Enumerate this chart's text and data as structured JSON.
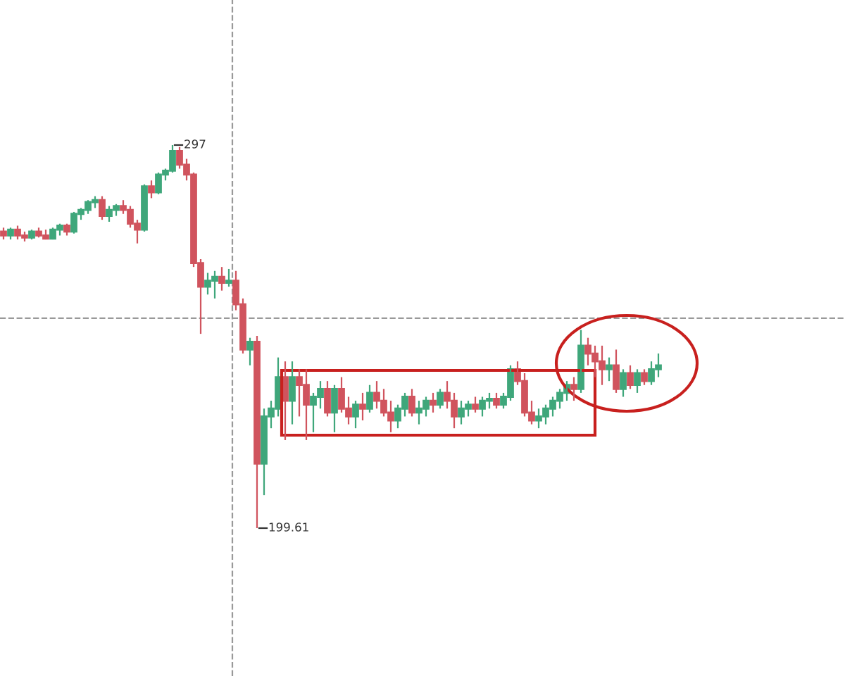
{
  "chart_data": {
    "type": "candlestick",
    "categories": [
      null,
      null,
      null,
      null,
      null,
      null,
      null,
      null,
      null,
      null,
      null,
      null,
      null,
      null,
      null,
      null,
      null,
      null,
      null,
      null,
      null,
      null,
      null,
      null,
      null,
      null,
      null,
      null,
      null,
      null,
      null,
      null,
      null,
      null,
      null,
      null,
      null,
      null,
      null,
      null,
      null,
      null,
      null,
      null,
      null,
      null,
      null,
      null,
      null,
      null,
      null,
      null,
      null,
      null,
      null,
      null,
      null,
      null,
      null,
      null,
      null,
      null,
      null,
      null,
      null,
      null,
      null,
      null,
      null,
      null,
      null,
      null,
      null,
      null,
      null,
      null,
      null,
      null,
      null,
      null,
      null,
      null,
      null,
      null,
      null,
      null,
      null,
      null,
      null,
      null,
      null,
      null,
      null,
      null
    ],
    "ohlc": [
      [
        275,
        276,
        273,
        274
      ],
      [
        274,
        276,
        273,
        275.5
      ],
      [
        275.5,
        276.5,
        273,
        274
      ],
      [
        274,
        275,
        272.5,
        273.5
      ],
      [
        273.5,
        275.5,
        273,
        275
      ],
      [
        275,
        276,
        273.5,
        274
      ],
      [
        274,
        275.5,
        273,
        273.2
      ],
      [
        273.2,
        276,
        273,
        275.5
      ],
      [
        275.5,
        277,
        274,
        276.5
      ],
      [
        276.5,
        277,
        274,
        275
      ],
      [
        275,
        280,
        274.5,
        279.5
      ],
      [
        279.5,
        281,
        278,
        280.5
      ],
      [
        280.5,
        283,
        279.5,
        282.5
      ],
      [
        282.5,
        284,
        281,
        283
      ],
      [
        283,
        284,
        278,
        279
      ],
      [
        279,
        281.5,
        277.5,
        280.5
      ],
      [
        280.5,
        282,
        279,
        281.5
      ],
      [
        281.5,
        283,
        279.5,
        280.5
      ],
      [
        280.5,
        281.5,
        276,
        277
      ],
      [
        277,
        278,
        272,
        275.5
      ],
      [
        275.5,
        287,
        275,
        286.5
      ],
      [
        286.5,
        288,
        283.5,
        285
      ],
      [
        285,
        290,
        284.5,
        289.5
      ],
      [
        289.5,
        291,
        288,
        290.5
      ],
      [
        290.5,
        297,
        290,
        295.5
      ],
      [
        295.5,
        296.5,
        291,
        292
      ],
      [
        292,
        293.5,
        288,
        289.5
      ],
      [
        289.5,
        290,
        266,
        267
      ],
      [
        267,
        268,
        249,
        261
      ],
      [
        261,
        264.5,
        259,
        262.5
      ],
      [
        262.5,
        265,
        258,
        263.5
      ],
      [
        263.5,
        266,
        260,
        262
      ],
      [
        262,
        265.5,
        261,
        262.5
      ],
      [
        262.5,
        265,
        255,
        256.5
      ],
      [
        256.5,
        258,
        244,
        245
      ],
      [
        245,
        248,
        241,
        247
      ],
      [
        247,
        248.5,
        199.61,
        216
      ],
      [
        216,
        230,
        208,
        228
      ],
      [
        228,
        232,
        225,
        230
      ],
      [
        230,
        243,
        228,
        238
      ],
      [
        238,
        242,
        222,
        232
      ],
      [
        232,
        242,
        226,
        238
      ],
      [
        238,
        240,
        228,
        236
      ],
      [
        236,
        240,
        222,
        231
      ],
      [
        231,
        234,
        224,
        233
      ],
      [
        233,
        237,
        230,
        235
      ],
      [
        235,
        237,
        228,
        229
      ],
      [
        229,
        236,
        224,
        235
      ],
      [
        235,
        238,
        229,
        230
      ],
      [
        230,
        233,
        226,
        228
      ],
      [
        228,
        232,
        225,
        231
      ],
      [
        231,
        234,
        227,
        230
      ],
      [
        230,
        236,
        229,
        234
      ],
      [
        234,
        237,
        230,
        232
      ],
      [
        232,
        235,
        228,
        229
      ],
      [
        229,
        232,
        224,
        227
      ],
      [
        227,
        231,
        225,
        230
      ],
      [
        230,
        234,
        228,
        233
      ],
      [
        233,
        235,
        228,
        229
      ],
      [
        229,
        232,
        226,
        230
      ],
      [
        230,
        233,
        228,
        232
      ],
      [
        232,
        234,
        229,
        231
      ],
      [
        231,
        235,
        230,
        234
      ],
      [
        234,
        237,
        230,
        232
      ],
      [
        232,
        234,
        225,
        228
      ],
      [
        228,
        232,
        226,
        230
      ],
      [
        230,
        232,
        228,
        231
      ],
      [
        231,
        233,
        229,
        230
      ],
      [
        230,
        233,
        228,
        232
      ],
      [
        232,
        234,
        230,
        232.5
      ],
      [
        232.5,
        234,
        230,
        231
      ],
      [
        231,
        234,
        230,
        233
      ],
      [
        233,
        241,
        232,
        240
      ],
      [
        240,
        242,
        236,
        237
      ],
      [
        237,
        239,
        228,
        229
      ],
      [
        229,
        232,
        226,
        227
      ],
      [
        227,
        230,
        225,
        228
      ],
      [
        228,
        231,
        226,
        230
      ],
      [
        230,
        233,
        228,
        232
      ],
      [
        232,
        235,
        230,
        234
      ],
      [
        234,
        237,
        232,
        236
      ],
      [
        236,
        238,
        232,
        235
      ],
      [
        235,
        250,
        234,
        246
      ],
      [
        246,
        248,
        241,
        244
      ],
      [
        244,
        246,
        238,
        242
      ],
      [
        242,
        246,
        236,
        240
      ],
      [
        240,
        243,
        237,
        241
      ],
      [
        241,
        245,
        234,
        235
      ],
      [
        235,
        240,
        233,
        239
      ],
      [
        239,
        241,
        235,
        236
      ],
      [
        236,
        240,
        234,
        239
      ],
      [
        239,
        240,
        236,
        237
      ],
      [
        237,
        242,
        236,
        240
      ],
      [
        240,
        244,
        238,
        241
      ]
    ],
    "annotations": [
      "297",
      "199.61"
    ],
    "ref_lines": [
      {
        "axis": "y",
        "value": 253,
        "line_style": "dashed",
        "color": "#999999"
      }
    ]
  }
}
